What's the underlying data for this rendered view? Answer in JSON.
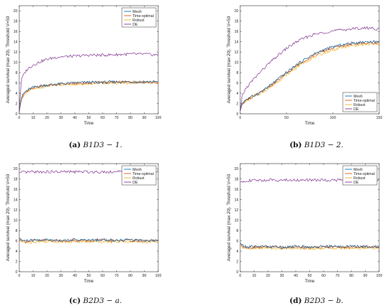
{
  "colors": {
    "mesh": "#0072BD",
    "time_optimal": "#D95319",
    "robust": "#EDB120",
    "de": "#7E2F8E",
    "black_trace": "#222222"
  },
  "legend_labels": [
    "Mesh",
    "Time-optimal",
    "Robust",
    "DE"
  ],
  "chart_data": [
    {
      "type": "line",
      "caption": {
        "tag": "(a)",
        "label": "B1D3 − 1."
      },
      "xlabel": "Time",
      "ylabel": "Averaged survival (max 20). Threshold V=50",
      "xlim": [
        0,
        100
      ],
      "ylim": [
        0,
        21
      ],
      "xticks": [
        "0",
        "10",
        "20",
        "30",
        "40",
        "50",
        "60",
        "70",
        "80",
        "90",
        "100"
      ],
      "yticks": [
        "0",
        "2",
        "4",
        "6",
        "8",
        "10",
        "12",
        "14",
        "16",
        "18",
        "20"
      ],
      "legend": "top-right",
      "series": [
        {
          "name": "Mesh",
          "x": [
            0,
            1,
            2,
            4,
            6,
            8,
            10,
            15,
            20,
            25,
            30,
            40,
            50,
            60,
            70,
            80,
            90,
            100
          ],
          "y": [
            0.3,
            2.4,
            3.4,
            4.2,
            4.6,
            4.9,
            5.1,
            5.4,
            5.6,
            5.7,
            5.8,
            6.0,
            6.1,
            6.1,
            6.2,
            6.2,
            6.2,
            6.2
          ]
        },
        {
          "name": "Time-optimal",
          "x": [
            0,
            1,
            2,
            4,
            6,
            8,
            10,
            15,
            20,
            25,
            30,
            40,
            50,
            60,
            70,
            80,
            90,
            100
          ],
          "y": [
            0.3,
            2.2,
            3.2,
            4.0,
            4.5,
            4.8,
            5.0,
            5.3,
            5.6,
            5.6,
            5.8,
            5.9,
            6.0,
            6.1,
            6.1,
            6.2,
            6.2,
            6.1
          ]
        },
        {
          "name": "Robust",
          "x": [
            0,
            1,
            2,
            4,
            6,
            8,
            10,
            15,
            20,
            25,
            30,
            40,
            50,
            60,
            70,
            80,
            90,
            100
          ],
          "y": [
            0.3,
            2.0,
            3.0,
            3.8,
            4.3,
            4.6,
            4.8,
            5.1,
            5.4,
            5.5,
            5.7,
            5.8,
            5.9,
            6.0,
            6.0,
            6.0,
            6.1,
            6.0
          ]
        },
        {
          "name": "DE",
          "x": [
            0,
            1,
            2,
            4,
            6,
            8,
            10,
            15,
            20,
            25,
            30,
            40,
            50,
            60,
            70,
            80,
            90,
            100
          ],
          "y": [
            0.5,
            5.0,
            7.0,
            8.0,
            8.7,
            9.1,
            9.5,
            10.1,
            10.6,
            10.9,
            11.1,
            11.2,
            11.4,
            11.4,
            11.5,
            11.6,
            11.6,
            11.4
          ]
        }
      ]
    },
    {
      "type": "line",
      "caption": {
        "tag": "(b)",
        "label": "B1D3 − 2."
      },
      "xlabel": "Time",
      "ylabel": "Averaged survival (max 20). Threshold V=50",
      "xlim": [
        0,
        150
      ],
      "ylim": [
        0,
        21
      ],
      "xticks": [
        "0",
        "50",
        "100",
        "150"
      ],
      "yticks": [
        "0",
        "2",
        "4",
        "6",
        "8",
        "10",
        "12",
        "14",
        "16",
        "18",
        "20"
      ],
      "legend": "bottom-right",
      "series": [
        {
          "name": "Mesh",
          "x": [
            0,
            2,
            5,
            10,
            20,
            30,
            40,
            50,
            60,
            70,
            80,
            90,
            100,
            110,
            120,
            130,
            140,
            150
          ],
          "y": [
            0.5,
            2.0,
            2.6,
            3.1,
            4.0,
            5.2,
            6.6,
            8.0,
            9.4,
            10.6,
            11.6,
            12.4,
            13.0,
            13.4,
            13.7,
            13.9,
            14.0,
            14.0
          ]
        },
        {
          "name": "Time-optimal",
          "x": [
            0,
            2,
            5,
            10,
            20,
            30,
            40,
            50,
            60,
            70,
            80,
            90,
            100,
            110,
            120,
            130,
            140,
            150
          ],
          "y": [
            0.5,
            1.9,
            2.5,
            3.0,
            3.9,
            5.1,
            6.4,
            7.8,
            9.2,
            10.4,
            11.4,
            12.2,
            12.8,
            13.2,
            13.5,
            13.7,
            13.8,
            13.8
          ]
        },
        {
          "name": "Robust",
          "x": [
            0,
            2,
            5,
            10,
            20,
            30,
            40,
            50,
            60,
            70,
            80,
            90,
            100,
            110,
            120,
            130,
            140,
            150
          ],
          "y": [
            0.5,
            1.8,
            2.4,
            2.9,
            3.8,
            4.9,
            6.2,
            7.6,
            8.9,
            10.1,
            11.0,
            11.8,
            12.4,
            12.9,
            13.2,
            13.4,
            13.5,
            13.5
          ]
        },
        {
          "name": "DE",
          "x": [
            0,
            2,
            5,
            10,
            20,
            30,
            40,
            50,
            60,
            70,
            80,
            90,
            100,
            110,
            120,
            130,
            140,
            150
          ],
          "y": [
            0.5,
            3.4,
            4.6,
            5.8,
            7.8,
            9.6,
            11.2,
            12.7,
            13.9,
            14.8,
            15.4,
            15.8,
            16.1,
            16.3,
            16.5,
            16.6,
            16.7,
            16.4
          ]
        }
      ]
    },
    {
      "type": "line",
      "caption": {
        "tag": "(c)",
        "label": "B2D3 − a."
      },
      "xlabel": "Time",
      "ylabel": "Averaged survival (max 20). Threshold V=50",
      "xlim": [
        0,
        100
      ],
      "ylim": [
        0,
        21
      ],
      "xticks": [
        "0",
        "10",
        "20",
        "30",
        "40",
        "50",
        "60",
        "70",
        "80",
        "90",
        "100"
      ],
      "yticks": [
        "0",
        "2",
        "4",
        "6",
        "8",
        "10",
        "12",
        "14",
        "16",
        "18",
        "20"
      ],
      "legend": "top-right",
      "series": [
        {
          "name": "Mesh",
          "x": [
            0,
            2,
            5,
            10,
            20,
            30,
            40,
            50,
            60,
            70,
            80,
            90,
            100
          ],
          "y": [
            6.6,
            6.1,
            6.0,
            6.1,
            6.2,
            6.1,
            6.2,
            6.1,
            6.2,
            6.1,
            6.2,
            6.1,
            6.1
          ]
        },
        {
          "name": "Time-optimal",
          "x": [
            0,
            2,
            5,
            10,
            20,
            30,
            40,
            50,
            60,
            70,
            80,
            90,
            100
          ],
          "y": [
            6.4,
            6.0,
            5.9,
            6.0,
            6.1,
            6.0,
            6.1,
            6.0,
            6.1,
            6.0,
            6.1,
            6.0,
            6.0
          ]
        },
        {
          "name": "Robust",
          "x": [
            0,
            2,
            5,
            10,
            20,
            30,
            40,
            50,
            60,
            70,
            80,
            90,
            100
          ],
          "y": [
            6.2,
            5.8,
            5.7,
            5.8,
            5.9,
            5.8,
            5.9,
            5.8,
            5.9,
            5.8,
            5.9,
            5.8,
            5.8
          ]
        },
        {
          "name": "DE",
          "x": [
            0,
            2,
            5,
            10,
            20,
            30,
            40,
            50,
            60,
            70,
            80,
            90,
            100
          ],
          "y": [
            19.2,
            19.3,
            19.3,
            19.4,
            19.4,
            19.4,
            19.4,
            19.4,
            19.4,
            19.4,
            19.4,
            19.4,
            19.4
          ]
        }
      ]
    },
    {
      "type": "line",
      "caption": {
        "tag": "(d)",
        "label": "B2D3 − b."
      },
      "xlabel": "Time",
      "ylabel": "Averaged survival (max 20). Threshold V=50",
      "xlim": [
        0,
        100
      ],
      "ylim": [
        0,
        21
      ],
      "xticks": [
        "0",
        "10",
        "20",
        "30",
        "40",
        "50",
        "60",
        "70",
        "80",
        "90",
        "100"
      ],
      "yticks": [
        "0",
        "2",
        "4",
        "6",
        "8",
        "10",
        "12",
        "14",
        "16",
        "18",
        "20"
      ],
      "legend": "top-right",
      "series": [
        {
          "name": "Mesh",
          "x": [
            0,
            2,
            5,
            10,
            20,
            30,
            40,
            50,
            60,
            70,
            80,
            90,
            100
          ],
          "y": [
            5.6,
            5.0,
            4.8,
            4.9,
            4.9,
            4.8,
            4.9,
            4.8,
            4.9,
            4.9,
            4.9,
            4.9,
            4.9
          ]
        },
        {
          "name": "Time-optimal",
          "x": [
            0,
            2,
            5,
            10,
            20,
            30,
            40,
            50,
            60,
            70,
            80,
            90,
            100
          ],
          "y": [
            5.4,
            4.9,
            4.7,
            4.8,
            4.8,
            4.7,
            4.8,
            4.7,
            4.8,
            4.8,
            4.8,
            4.8,
            4.8
          ]
        },
        {
          "name": "Robust",
          "x": [
            0,
            2,
            5,
            10,
            20,
            30,
            40,
            50,
            60,
            70,
            80,
            90,
            100
          ],
          "y": [
            5.2,
            4.7,
            4.5,
            4.6,
            4.6,
            4.5,
            4.6,
            4.5,
            4.6,
            4.6,
            4.6,
            4.6,
            4.6
          ]
        },
        {
          "name": "DE",
          "x": [
            0,
            2,
            5,
            10,
            20,
            30,
            40,
            50,
            60,
            70,
            80,
            90,
            100
          ],
          "y": [
            17.4,
            17.6,
            17.7,
            17.7,
            17.8,
            17.8,
            17.8,
            17.8,
            17.8,
            17.8,
            17.9,
            17.9,
            17.9
          ]
        }
      ]
    }
  ]
}
